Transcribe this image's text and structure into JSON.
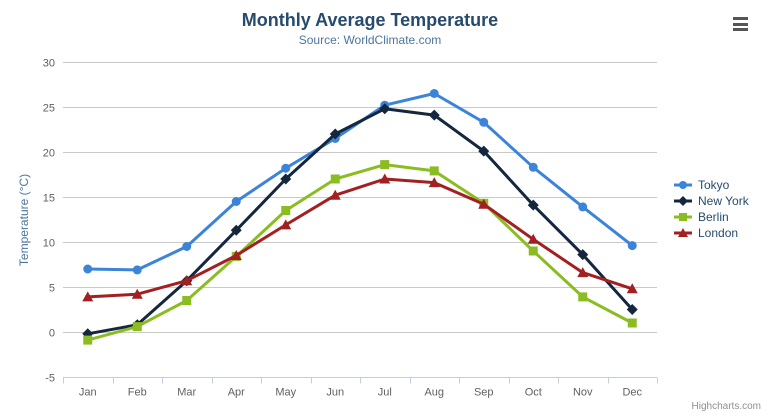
{
  "header": {
    "title": "Monthly Average Temperature",
    "subtitle": "Source: WorldClimate.com"
  },
  "icons": {
    "context_menu": "hamburger"
  },
  "credit": "Highcharts.com",
  "chart_data": {
    "type": "line",
    "title": "Monthly Average Temperature",
    "subtitle": "Source: WorldClimate.com",
    "categories": [
      "Jan",
      "Feb",
      "Mar",
      "Apr",
      "May",
      "Jun",
      "Jul",
      "Aug",
      "Sep",
      "Oct",
      "Nov",
      "Dec"
    ],
    "xlabel": "",
    "ylabel": "Temperature (°C)",
    "ylim": [
      -5,
      30
    ],
    "ytick_interval": 5,
    "yticks": [
      -5,
      0,
      5,
      10,
      15,
      20,
      25,
      30
    ],
    "grid": true,
    "legend_position": "right",
    "colors": {
      "grid": "#c9c9c9",
      "axis_line": "#c0d0e0",
      "axis_label": "#606060",
      "title": "#274b6d",
      "subtitle": "#4d759e",
      "legend_text": "#274b6d"
    },
    "series": [
      {
        "name": "Tokyo",
        "color": "#3c84d8",
        "marker": "circle",
        "values": [
          7.0,
          6.9,
          9.5,
          14.5,
          18.2,
          21.5,
          25.2,
          26.5,
          23.3,
          18.3,
          13.9,
          9.6
        ]
      },
      {
        "name": "New York",
        "color": "#14273e",
        "marker": "diamond",
        "values": [
          -0.2,
          0.8,
          5.7,
          11.3,
          17.0,
          22.0,
          24.8,
          24.1,
          20.1,
          14.1,
          8.6,
          2.5
        ]
      },
      {
        "name": "Berlin",
        "color": "#8bbc21",
        "marker": "square",
        "values": [
          -0.9,
          0.6,
          3.5,
          8.4,
          13.5,
          17.0,
          18.6,
          17.9,
          14.3,
          9.0,
          3.9,
          1.0
        ]
      },
      {
        "name": "London",
        "color": "#a22021",
        "marker": "triangle",
        "values": [
          3.9,
          4.2,
          5.7,
          8.5,
          11.9,
          15.2,
          17.0,
          16.6,
          14.2,
          10.3,
          6.6,
          4.8
        ]
      }
    ]
  }
}
